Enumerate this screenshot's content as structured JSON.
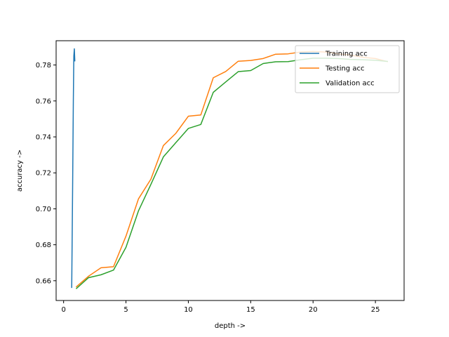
{
  "chart_data": {
    "type": "line",
    "title": "",
    "xlabel": "depth ->",
    "ylabel": "accuracy ->",
    "xlim": [
      -0.6,
      27.3
    ],
    "ylim": [
      0.649,
      0.7935
    ],
    "xticks": [
      0,
      5,
      10,
      15,
      20,
      25
    ],
    "yticks": [
      0.66,
      0.68,
      0.7,
      0.72,
      0.74,
      0.76,
      0.78
    ],
    "ytick_labels": [
      "0.66",
      "0.68",
      "0.70",
      "0.72",
      "0.74",
      "0.76",
      "0.78"
    ],
    "grid": false,
    "legend_position": "top-right",
    "series": [
      {
        "name": "Training acc",
        "color": "#1f77b4",
        "points": [
          [
            0.65,
            0.656
          ],
          [
            0.72,
            0.71
          ],
          [
            0.78,
            0.76
          ],
          [
            0.82,
            0.785
          ],
          [
            0.86,
            0.789
          ],
          [
            0.9,
            0.782
          ]
        ]
      },
      {
        "name": "Testing acc",
        "color": "#ff7f0e",
        "points": [
          [
            1,
            0.6565
          ],
          [
            2,
            0.6625
          ],
          [
            3,
            0.6672
          ],
          [
            4,
            0.6678
          ],
          [
            5,
            0.6848
          ],
          [
            6,
            0.7055
          ],
          [
            7,
            0.7165
          ],
          [
            8,
            0.7352
          ],
          [
            9,
            0.742
          ],
          [
            10,
            0.7515
          ],
          [
            11,
            0.7522
          ],
          [
            12,
            0.7729
          ],
          [
            13,
            0.7764
          ],
          [
            14,
            0.7821
          ],
          [
            15,
            0.7825
          ],
          [
            16,
            0.7836
          ],
          [
            17,
            0.786
          ],
          [
            18,
            0.7862
          ],
          [
            19,
            0.7872
          ],
          [
            20,
            0.7875
          ],
          [
            21,
            0.7872
          ],
          [
            22,
            0.7862
          ],
          [
            23,
            0.7855
          ],
          [
            24,
            0.7843
          ],
          [
            25,
            0.7836
          ],
          [
            26,
            0.7818
          ]
        ]
      },
      {
        "name": "Validation acc",
        "color": "#2ca02c",
        "points": [
          [
            1,
            0.6555
          ],
          [
            2,
            0.6617
          ],
          [
            3,
            0.6633
          ],
          [
            4,
            0.6659
          ],
          [
            5,
            0.6786
          ],
          [
            6,
            0.6988
          ],
          [
            7,
            0.7136
          ],
          [
            8,
            0.7289
          ],
          [
            9,
            0.7368
          ],
          [
            10,
            0.7447
          ],
          [
            11,
            0.7469
          ],
          [
            12,
            0.7648
          ],
          [
            13,
            0.7706
          ],
          [
            14,
            0.7763
          ],
          [
            15,
            0.7769
          ],
          [
            16,
            0.7808
          ],
          [
            17,
            0.7818
          ],
          [
            18,
            0.7819
          ],
          [
            19,
            0.7829
          ],
          [
            20,
            0.7838
          ],
          [
            21,
            0.7838
          ],
          [
            22,
            0.7836
          ],
          [
            23,
            0.7831
          ],
          [
            24,
            0.7829
          ],
          [
            25,
            0.7826
          ],
          [
            26,
            0.782
          ]
        ]
      }
    ]
  }
}
